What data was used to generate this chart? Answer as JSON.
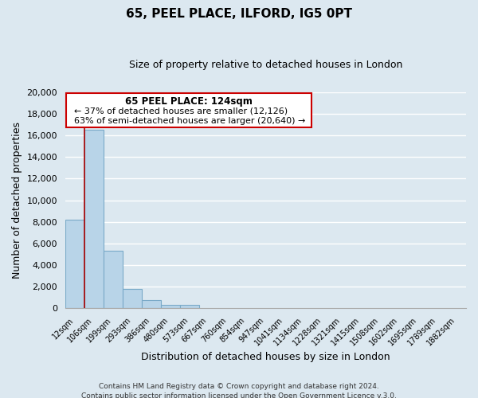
{
  "title1": "65, PEEL PLACE, ILFORD, IG5 0PT",
  "title2": "Size of property relative to detached houses in London",
  "xlabel": "Distribution of detached houses by size in London",
  "ylabel": "Number of detached properties",
  "categories": [
    "12sqm",
    "106sqm",
    "199sqm",
    "293sqm",
    "386sqm",
    "480sqm",
    "573sqm",
    "667sqm",
    "760sqm",
    "854sqm",
    "947sqm",
    "1041sqm",
    "1134sqm",
    "1228sqm",
    "1321sqm",
    "1415sqm",
    "1508sqm",
    "1602sqm",
    "1695sqm",
    "1789sqm",
    "1882sqm"
  ],
  "values": [
    8200,
    16500,
    5300,
    1800,
    800,
    300,
    300,
    0,
    0,
    0,
    0,
    0,
    0,
    0,
    0,
    0,
    0,
    0,
    0,
    0,
    0
  ],
  "bar_color": "#b8d4e8",
  "bar_edge_color": "#7aaac8",
  "ylim": [
    0,
    20000
  ],
  "yticks": [
    0,
    2000,
    4000,
    6000,
    8000,
    10000,
    12000,
    14000,
    16000,
    18000,
    20000
  ],
  "vline_color": "#aa0000",
  "annotation_title": "65 PEEL PLACE: 124sqm",
  "annotation_line1": "← 37% of detached houses are smaller (12,126)",
  "annotation_line2": "63% of semi-detached houses are larger (20,640) →",
  "footer1": "Contains HM Land Registry data © Crown copyright and database right 2024.",
  "footer2": "Contains public sector information licensed under the Open Government Licence v.3.0.",
  "background_color": "#dce8f0",
  "grid_color": "#c8d8e4"
}
